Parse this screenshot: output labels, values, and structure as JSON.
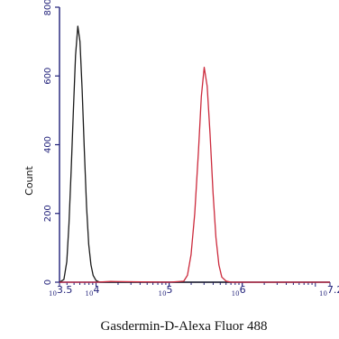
{
  "chart_data": {
    "type": "line",
    "title": "",
    "xlabel": "Gasdermin-D-Alexa Fluor 488",
    "ylabel": "Count",
    "x_scale": "log10",
    "xlim_exponent": [
      3.5,
      7.2
    ],
    "ylim": [
      0,
      800
    ],
    "y_ticks": [
      0,
      200,
      400,
      600,
      800
    ],
    "x_ticks": [
      {
        "base": "10",
        "exp": "3.5",
        "value": 3.5
      },
      {
        "base": "10",
        "exp": "4",
        "value": 4
      },
      {
        "base": "10",
        "exp": "5",
        "value": 5
      },
      {
        "base": "10",
        "exp": "6",
        "value": 6
      },
      {
        "base": "10",
        "exp": "7.2",
        "value": 7.2
      }
    ],
    "grid": false,
    "legend": "none",
    "series": [
      {
        "color": "#1a1a1a",
        "points": [
          [
            3.5,
            0
          ],
          [
            3.56,
            8
          ],
          [
            3.6,
            60
          ],
          [
            3.63,
            170
          ],
          [
            3.66,
            330
          ],
          [
            3.69,
            500
          ],
          [
            3.72,
            660
          ],
          [
            3.75,
            745
          ],
          [
            3.78,
            700
          ],
          [
            3.81,
            560
          ],
          [
            3.84,
            380
          ],
          [
            3.87,
            220
          ],
          [
            3.9,
            110
          ],
          [
            3.93,
            50
          ],
          [
            3.96,
            20
          ],
          [
            4.0,
            5
          ],
          [
            4.05,
            0
          ],
          [
            5.0,
            0
          ],
          [
            7.2,
            0
          ]
        ]
      },
      {
        "color": "#cc2a3c",
        "points": [
          [
            3.5,
            0
          ],
          [
            4.0,
            0
          ],
          [
            4.2,
            2
          ],
          [
            5.0,
            0
          ],
          [
            5.2,
            3
          ],
          [
            5.25,
            20
          ],
          [
            5.3,
            80
          ],
          [
            5.35,
            200
          ],
          [
            5.4,
            380
          ],
          [
            5.44,
            540
          ],
          [
            5.48,
            625
          ],
          [
            5.52,
            570
          ],
          [
            5.56,
            430
          ],
          [
            5.6,
            260
          ],
          [
            5.64,
            130
          ],
          [
            5.68,
            50
          ],
          [
            5.72,
            15
          ],
          [
            5.78,
            3
          ],
          [
            5.85,
            0
          ],
          [
            7.2,
            0
          ]
        ]
      }
    ]
  }
}
